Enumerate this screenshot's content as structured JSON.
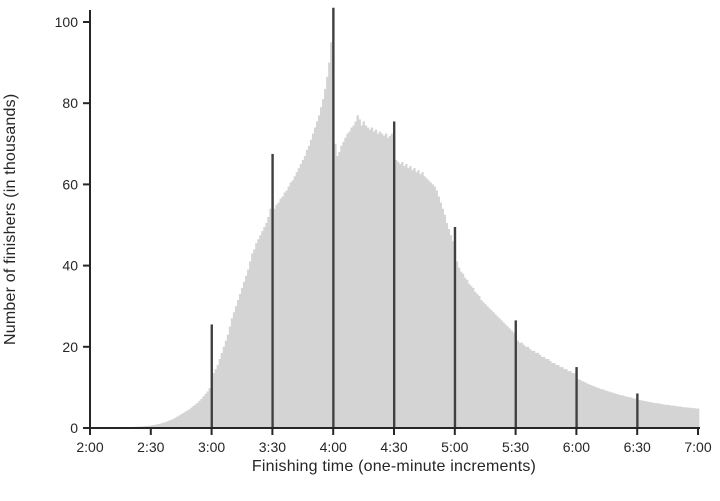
{
  "chart_data": {
    "type": "bar",
    "title": "",
    "xlabel": "Finishing time (one-minute increments)",
    "ylabel": "Number of finishers (in thousands)",
    "x_start_minute": 120,
    "x_end_minute": 420,
    "x_tick_minutes": [
      120,
      150,
      180,
      210,
      240,
      270,
      300,
      330,
      360,
      390,
      420
    ],
    "x_tick_labels": [
      "2:00",
      "2:30",
      "3:00",
      "3:30",
      "4:00",
      "4:30",
      "5:00",
      "5:30",
      "6:00",
      "6:30",
      "7:00"
    ],
    "y_ticks": [
      0,
      20,
      40,
      60,
      80,
      100
    ],
    "ylim": [
      0,
      105
    ],
    "grid": false,
    "legend": "none",
    "bar_color": "#d4d4d4",
    "spike_color": "#404040",
    "axis_color": "#262626",
    "spike_minutes": [
      180,
      210,
      240,
      270,
      300,
      330,
      360,
      390
    ],
    "values": [
      0.05,
      0.05,
      0.05,
      0.05,
      0.05,
      0.06,
      0.06,
      0.07,
      0.07,
      0.08,
      0.08,
      0.09,
      0.1,
      0.1,
      0.12,
      0.13,
      0.15,
      0.16,
      0.18,
      0.2,
      0.22,
      0.25,
      0.28,
      0.3,
      0.33,
      0.36,
      0.4,
      0.45,
      0.5,
      0.55,
      0.6,
      0.7,
      0.8,
      0.9,
      1,
      1.1,
      1.3,
      1.4,
      1.6,
      1.8,
      2,
      2.2,
      2.5,
      2.8,
      3.1,
      3.4,
      3.7,
      4,
      4.3,
      4.6,
      5,
      5.4,
      5.8,
      6.2,
      6.7,
      7.2,
      7.8,
      8.4,
      9,
      9.8,
      25.5,
      13.5,
      14.5,
      15.5,
      17,
      18.5,
      20,
      21.5,
      23,
      25,
      27,
      28.5,
      30,
      31.5,
      33,
      34.5,
      36,
      37.5,
      39,
      41,
      43,
      44,
      45.5,
      46.5,
      47.5,
      48.5,
      49.5,
      50.5,
      52,
      54,
      67.5,
      54,
      55,
      55.5,
      56.5,
      57,
      58,
      58.5,
      59.5,
      60.5,
      61,
      62,
      63,
      64,
      65,
      66,
      67,
      68.5,
      69.5,
      71,
      72.5,
      74,
      75.5,
      77,
      79,
      81,
      83.5,
      86.5,
      90,
      95,
      103.5,
      70,
      67,
      68,
      69.5,
      70.5,
      71.5,
      72.5,
      73,
      74,
      74.5,
      75.5,
      77,
      76,
      74.5,
      75.5,
      74.5,
      74,
      73.5,
      74,
      73,
      73.5,
      72.5,
      73,
      72.5,
      72,
      72.5,
      71.5,
      72,
      72.5,
      75.5,
      66,
      65.5,
      65,
      65.5,
      64.5,
      65,
      64,
      64.5,
      63.5,
      64,
      63,
      63.5,
      62.5,
      63,
      62,
      61.5,
      61,
      60.5,
      60,
      59.5,
      58.5,
      57,
      55.5,
      54,
      52.5,
      50.5,
      49,
      47.5,
      46,
      49.5,
      41,
      39.5,
      38.5,
      38,
      37,
      36.5,
      35.5,
      35,
      34.5,
      33.5,
      33,
      32.5,
      31.5,
      31,
      30.5,
      30,
      29.5,
      29,
      28.5,
      28,
      27.5,
      27,
      26.5,
      26,
      25.5,
      25,
      24.5,
      24,
      23.5,
      26.5,
      21.5,
      21,
      21,
      20.5,
      20,
      20,
      19.5,
      19,
      19,
      18.5,
      18.5,
      18,
      17.5,
      17.5,
      17,
      17,
      16.5,
      16,
      16,
      15.5,
      15.5,
      15,
      15,
      14.5,
      14.5,
      14,
      14,
      13.5,
      13.5,
      15,
      12,
      11.8,
      11.5,
      11.3,
      11,
      10.8,
      10.6,
      10.4,
      10.2,
      10,
      9.8,
      9.6,
      9.5,
      9.3,
      9.1,
      9,
      8.8,
      8.7,
      8.5,
      8.4,
      8.2,
      8.1,
      8,
      7.8,
      7.7,
      7.6,
      7.5,
      7.3,
      7.2,
      8.5,
      6.9,
      6.8,
      6.7,
      6.6,
      6.5,
      6.4,
      6.3,
      6.2,
      6.1,
      6.1,
      6,
      5.9,
      5.8,
      5.7,
      5.7,
      5.6,
      5.5,
      5.5,
      5.4,
      5.3,
      5.3,
      5.2,
      5.1,
      5.1,
      5,
      5,
      4.9,
      4.9,
      4.8,
      4.8
    ]
  }
}
